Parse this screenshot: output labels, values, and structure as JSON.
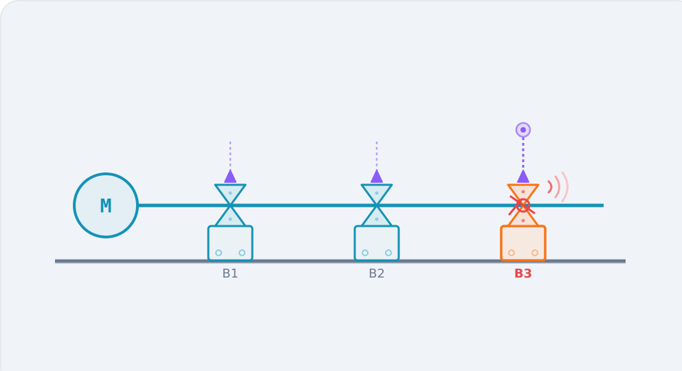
{
  "motor": {
    "label": "M"
  },
  "bearings": [
    {
      "label": "B1"
    },
    {
      "label": "B2"
    },
    {
      "label": "B3"
    }
  ]
}
